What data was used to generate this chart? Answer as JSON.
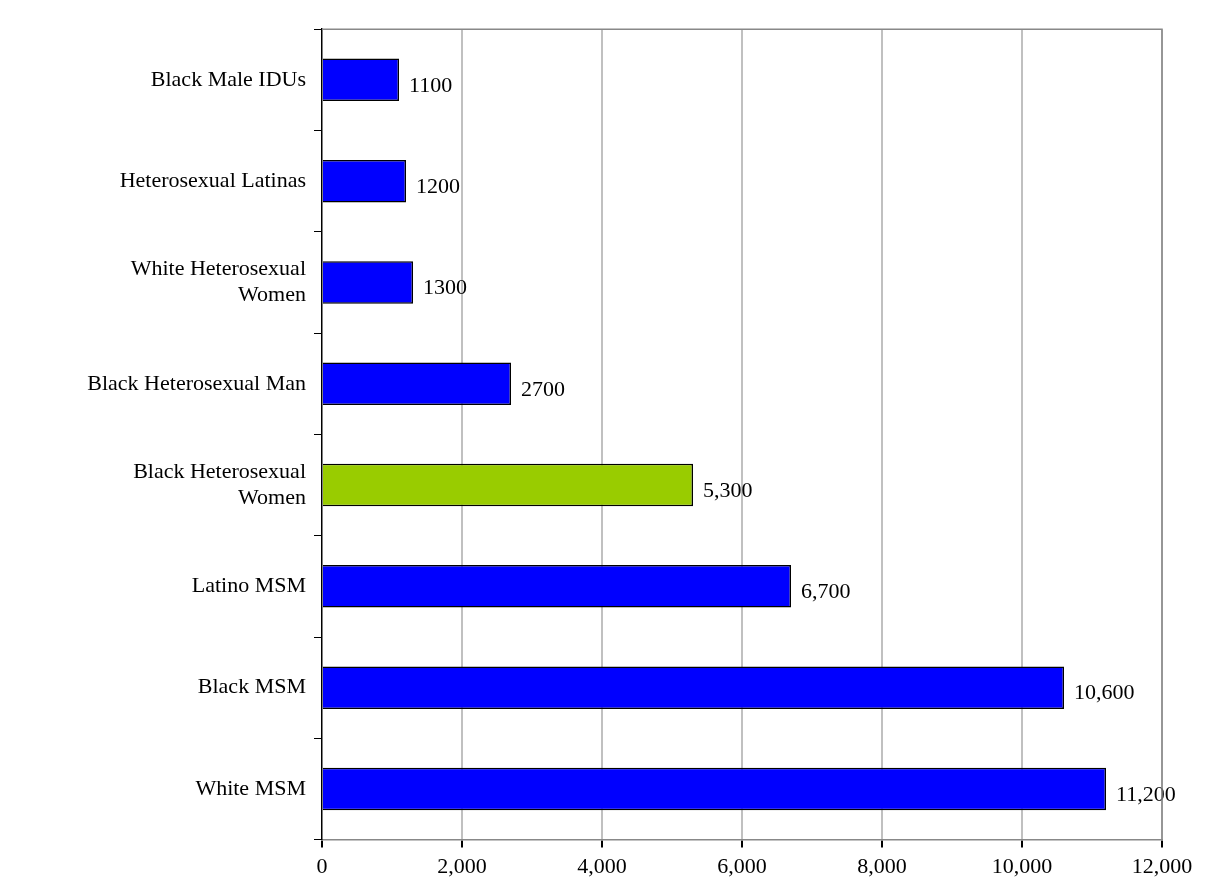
{
  "chart_data": {
    "type": "bar",
    "orientation": "horizontal",
    "categories": [
      "Black Male IDUs",
      "Heterosexual Latinas",
      "White Heterosexual Women",
      "Black Heterosexual Man",
      "Black Heterosexual Women",
      "Latino MSM",
      "Black MSM",
      "White MSM"
    ],
    "values": [
      1100,
      1200,
      1300,
      2700,
      5300,
      6700,
      10600,
      11200
    ],
    "colors": [
      "#0000ff",
      "#0000ff",
      "#0000ff",
      "#0000ff",
      "#99cc00",
      "#0000ff",
      "#0000ff",
      "#0000ff"
    ],
    "value_labels": [
      "1100",
      "1200",
      "1300",
      "2700",
      "5,300",
      "6,700",
      "10,600",
      "11,200"
    ],
    "xlim": [
      0,
      12000
    ],
    "xticks": [
      {
        "value": 0,
        "label": "0"
      },
      {
        "value": 2000,
        "label": "2,000"
      },
      {
        "value": 4000,
        "label": "4,000"
      },
      {
        "value": 6000,
        "label": "6,000"
      },
      {
        "value": 8000,
        "label": "8,000"
      },
      {
        "value": 10000,
        "label": "10,000"
      },
      {
        "value": 12000,
        "label": "12,000"
      }
    ],
    "grid": "x",
    "legend": false
  }
}
